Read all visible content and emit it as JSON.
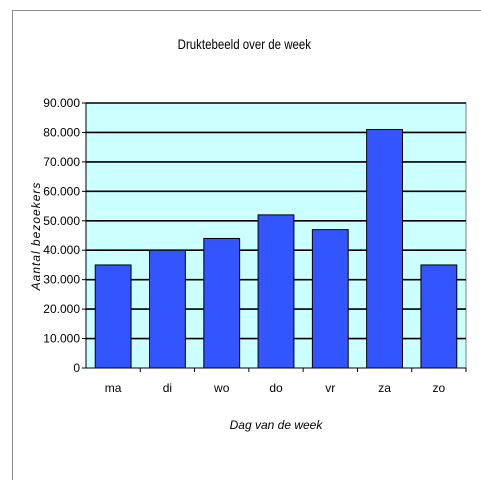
{
  "chart_data": {
    "type": "bar",
    "title": "Druktebeeld over de week",
    "xlabel": "Dag van de week",
    "ylabel": "Aantal bezoekers",
    "categories": [
      "ma",
      "di",
      "wo",
      "do",
      "vr",
      "za",
      "zo"
    ],
    "values": [
      35000,
      40000,
      44000,
      52000,
      47000,
      81000,
      35000
    ],
    "ylim": [
      0,
      90000
    ],
    "yticks": [
      "0",
      "10.000",
      "20.000",
      "30.000",
      "40.000",
      "50.000",
      "60.000",
      "70.000",
      "80.000",
      "90.000"
    ],
    "grid": true,
    "colors": {
      "bar": "#3355ff",
      "plot_background": "#ccffff",
      "bar_border": "#000000"
    }
  }
}
